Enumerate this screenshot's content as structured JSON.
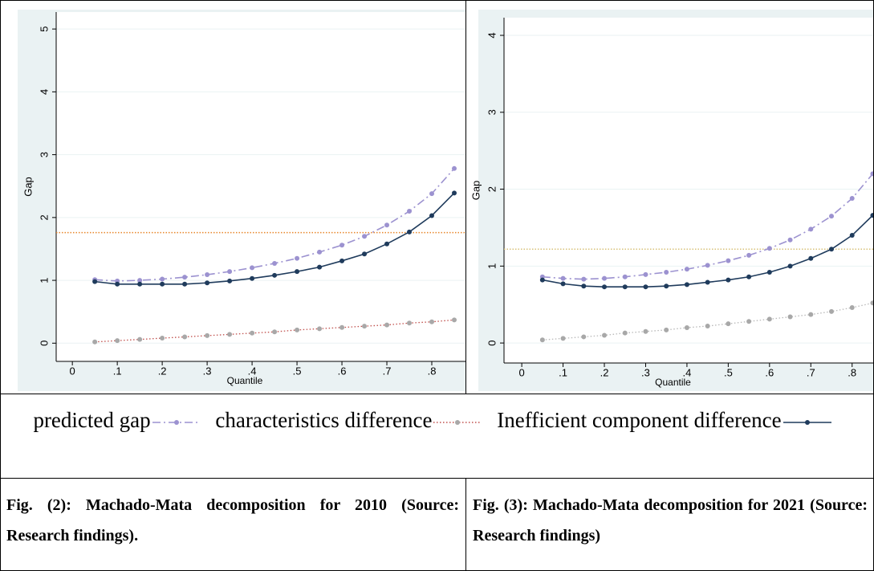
{
  "chart_data": [
    {
      "type": "line",
      "x_label": "Quantile",
      "y_label": "Gap",
      "x": [
        0.05,
        0.1,
        0.15,
        0.2,
        0.25,
        0.3,
        0.35,
        0.4,
        0.45,
        0.5,
        0.55,
        0.6,
        0.65,
        0.7,
        0.75,
        0.8,
        0.85
      ],
      "series": [
        {
          "name": "predicted gap",
          "color": "#9c92d0",
          "line_style": "dashed",
          "marker_color": "#9c92d0",
          "values": [
            1.01,
            0.99,
            1.0,
            1.02,
            1.05,
            1.09,
            1.14,
            1.2,
            1.27,
            1.35,
            1.45,
            1.56,
            1.7,
            1.88,
            2.1,
            2.38,
            2.78
          ]
        },
        {
          "name": "characteristics difference",
          "color": "#c0504d",
          "line_style": "dotted",
          "marker_color": "#a8a8a8",
          "values": [
            0.02,
            0.04,
            0.06,
            0.08,
            0.1,
            0.12,
            0.14,
            0.16,
            0.18,
            0.21,
            0.23,
            0.25,
            0.27,
            0.29,
            0.32,
            0.34,
            0.37
          ]
        },
        {
          "name": "Inefficient component difference",
          "color": "#1f3b5c",
          "line_style": "solid",
          "marker_color": "#1f3b5c",
          "values": [
            0.98,
            0.94,
            0.94,
            0.94,
            0.94,
            0.96,
            0.99,
            1.03,
            1.08,
            1.14,
            1.21,
            1.31,
            1.42,
            1.58,
            1.77,
            2.03,
            2.39
          ]
        }
      ],
      "reference_line": {
        "value": 1.76,
        "color": "#e8872b"
      },
      "xlim": [
        -0.036,
        0.875
      ],
      "ylim": [
        -0.29,
        5.27
      ],
      "xticks": [
        0,
        {
          "value": 0.1,
          "label": ".1"
        },
        {
          "value": 0.2,
          "label": ".2"
        },
        {
          "value": 0.3,
          "label": ".3"
        },
        {
          "value": 0.4,
          "label": ".4"
        },
        {
          "value": 0.5,
          "label": ".5"
        },
        {
          "value": 0.6,
          "label": ".6"
        },
        {
          "value": 0.7,
          "label": ".7"
        },
        {
          "value": 0.8,
          "label": ".8"
        }
      ],
      "yticks": [
        0,
        1,
        2,
        3,
        4,
        5
      ],
      "grid": true
    },
    {
      "type": "line",
      "x_label": "Quantile",
      "y_label": "Gap",
      "x": [
        0.05,
        0.1,
        0.15,
        0.2,
        0.25,
        0.3,
        0.35,
        0.4,
        0.45,
        0.5,
        0.55,
        0.6,
        0.65,
        0.7,
        0.75,
        0.8,
        0.85
      ],
      "series": [
        {
          "name": "predicted gap",
          "color": "#9c92d0",
          "line_style": "dashed",
          "marker_color": "#9c92d0",
          "values": [
            0.86,
            0.84,
            0.83,
            0.84,
            0.86,
            0.89,
            0.92,
            0.96,
            1.01,
            1.07,
            1.14,
            1.23,
            1.34,
            1.48,
            1.65,
            1.88,
            2.2
          ]
        },
        {
          "name": "characteristics difference",
          "color": "#b8b8b8",
          "line_style": "dotted",
          "marker_color": "#a8a8a8",
          "values": [
            0.04,
            0.06,
            0.08,
            0.1,
            0.13,
            0.15,
            0.17,
            0.2,
            0.22,
            0.25,
            0.28,
            0.31,
            0.34,
            0.37,
            0.41,
            0.46,
            0.52
          ]
        },
        {
          "name": "Inefficient component difference",
          "color": "#1f3b5c",
          "line_style": "solid",
          "marker_color": "#1f3b5c",
          "values": [
            0.82,
            0.77,
            0.74,
            0.73,
            0.73,
            0.73,
            0.74,
            0.76,
            0.79,
            0.82,
            0.86,
            0.92,
            1.0,
            1.1,
            1.22,
            1.4,
            1.66
          ]
        }
      ],
      "reference_line": {
        "value": 1.22,
        "color": "#d8c27a"
      },
      "xlim": [
        -0.043,
        0.853
      ],
      "ylim": [
        -0.26,
        4.23
      ],
      "xticks": [
        0,
        {
          "value": 0.1,
          "label": ".1"
        },
        {
          "value": 0.2,
          "label": ".2"
        },
        {
          "value": 0.3,
          "label": ".3"
        },
        {
          "value": 0.4,
          "label": ".4"
        },
        {
          "value": 0.5,
          "label": ".5"
        },
        {
          "value": 0.6,
          "label": ".6"
        },
        {
          "value": 0.7,
          "label": ".7"
        },
        {
          "value": 0.8,
          "label": ".8"
        }
      ],
      "yticks": [
        0,
        1,
        2,
        3,
        4
      ],
      "grid": true
    }
  ],
  "captions": [
    "Fig. (2): Machado-Mata decomposition for 2010 (Source: Research findings).",
    "Fig. (3): Machado-Mata decomposition for 2021 (Source: Research findings)"
  ]
}
